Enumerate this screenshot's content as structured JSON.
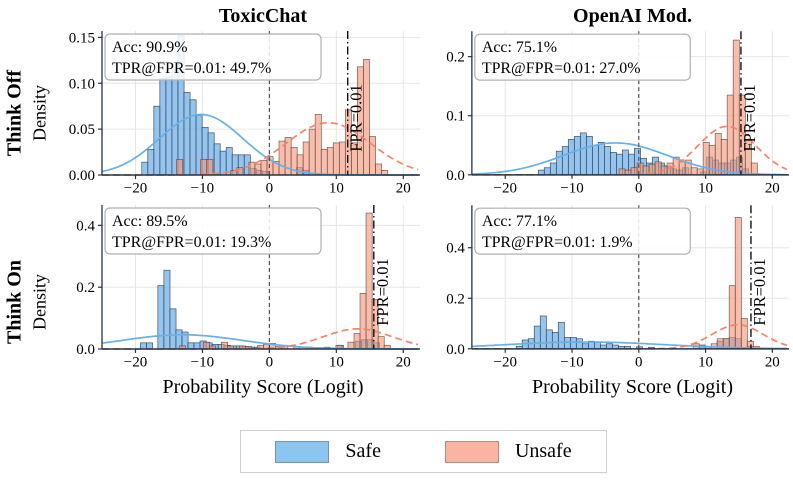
{
  "figure": {
    "columns": [
      "ToxicChat",
      "OpenAI Mod."
    ],
    "rows": [
      "Think Off",
      "Think On"
    ],
    "ylabel": "Density",
    "xlabel": "Probability Score (Logit)",
    "fpr_line_label": "FPR=0.01",
    "legend": [
      {
        "label": "Safe",
        "color": "#8cc5f0"
      },
      {
        "label": "Unsafe",
        "color": "#fbb4a2"
      }
    ],
    "colors": {
      "safe_fill": "rgba(108,175,233,0.72)",
      "safe_edge": "rgba(42,58,74,0.85)",
      "safe_line": "#67b0ea",
      "unsafe_fill": "rgba(246,150,120,0.62)",
      "unsafe_edge": "rgba(85,62,55,0.8)",
      "unsafe_line": "#f48468",
      "zero_line": "#444444",
      "fpr_line": "#111111",
      "grid": "#e6e6e6",
      "spine": "#243447",
      "annotation_border": "#b0b0b0"
    }
  },
  "chart_data": [
    {
      "type": "histogram+kde",
      "title": "ToxicChat",
      "row": "Think Off",
      "acc_text": "Acc: 90.9%",
      "tpr_text": "TPR@FPR=0.01: 49.7%",
      "xlim": [
        -25,
        22.5
      ],
      "ylim": [
        0,
        0.157
      ],
      "xticks": {
        "values": [
          -20,
          -10,
          0,
          10,
          20
        ],
        "labels": [
          "−20",
          "−10",
          "0",
          "10",
          "20"
        ]
      },
      "yticks": {
        "values": [
          0,
          0.05,
          0.1,
          0.15
        ],
        "labels": [
          "0.00",
          "0.05",
          "0.10",
          "0.15"
        ]
      },
      "zero_x": 0,
      "fpr_x": 11.7,
      "bin_width": 0.92,
      "safe_bins": [
        [
          -18.6,
          0.014
        ],
        [
          -17.7,
          0.028
        ],
        [
          -16.8,
          0.075
        ],
        [
          -15.9,
          0.105
        ],
        [
          -15.0,
          0.107
        ],
        [
          -14.1,
          0.115
        ],
        [
          -13.2,
          0.152
        ],
        [
          -12.3,
          0.09
        ],
        [
          -11.4,
          0.082
        ],
        [
          -10.5,
          0.065
        ],
        [
          -9.6,
          0.052
        ],
        [
          -8.7,
          0.046
        ],
        [
          -7.8,
          0.034
        ],
        [
          -6.9,
          0.026
        ],
        [
          -6.0,
          0.03
        ],
        [
          -5.1,
          0.022
        ],
        [
          -4.2,
          0.022
        ],
        [
          -3.3,
          0.022
        ],
        [
          -2.4,
          0.007
        ],
        [
          -1.5,
          0.005
        ],
        [
          -0.6,
          0.004
        ],
        [
          4.5,
          0.008
        ],
        [
          5.4,
          0.005
        ]
      ],
      "unsafe_bins": [
        [
          -13.4,
          0.017
        ],
        [
          -9.8,
          0.017
        ],
        [
          -8.9,
          0.017
        ],
        [
          -5.3,
          0.005
        ],
        [
          -4.4,
          0.008
        ],
        [
          -2.6,
          0.014
        ],
        [
          -1.7,
          0.012
        ],
        [
          -0.8,
          0.016
        ],
        [
          0.1,
          0.02
        ],
        [
          1.0,
          0.015
        ],
        [
          1.9,
          0.037
        ],
        [
          2.8,
          0.041
        ],
        [
          3.7,
          0.03
        ],
        [
          4.6,
          0.022
        ],
        [
          5.5,
          0.036
        ],
        [
          6.4,
          0.05
        ],
        [
          7.3,
          0.066
        ],
        [
          8.2,
          0.028
        ],
        [
          9.1,
          0.03
        ],
        [
          10.0,
          0.035
        ],
        [
          10.9,
          0.036
        ],
        [
          11.8,
          0.071
        ],
        [
          12.7,
          0.035
        ],
        [
          13.6,
          0.118
        ],
        [
          14.5,
          0.126
        ],
        [
          15.4,
          0.042
        ],
        [
          16.3,
          0.012
        ],
        [
          17.2,
          0.005
        ]
      ],
      "safe_kde": {
        "mean": -10.2,
        "sd": 6.2,
        "peak": 0.066
      },
      "unsafe_kde": {
        "mean": 8.8,
        "sd": 6.3,
        "peak": 0.057
      }
    },
    {
      "type": "histogram+kde",
      "title": "OpenAI Mod.",
      "row": "Think Off",
      "acc_text": "Acc: 75.1%",
      "tpr_text": "TPR@FPR=0.01: 27.0%",
      "xlim": [
        -25,
        22.5
      ],
      "ylim": [
        0,
        0.243
      ],
      "xticks": {
        "values": [
          -20,
          -10,
          0,
          10,
          20
        ],
        "labels": [
          "−20",
          "−10",
          "0",
          "10",
          "20"
        ]
      },
      "yticks": {
        "values": [
          0,
          0.1,
          0.2
        ],
        "labels": [
          "0.0",
          "0.1",
          "0.2"
        ]
      },
      "zero_x": 0,
      "fpr_x": 15.3,
      "bin_width": 0.92,
      "safe_bins": [
        [
          -14.6,
          0.008
        ],
        [
          -13.7,
          0.012
        ],
        [
          -12.8,
          0.02
        ],
        [
          -11.9,
          0.04
        ],
        [
          -11.0,
          0.048
        ],
        [
          -10.1,
          0.06
        ],
        [
          -9.2,
          0.065
        ],
        [
          -8.3,
          0.071
        ],
        [
          -7.4,
          0.065
        ],
        [
          -6.5,
          0.05
        ],
        [
          -5.6,
          0.055
        ],
        [
          -4.7,
          0.048
        ],
        [
          -3.8,
          0.038
        ],
        [
          -2.9,
          0.035
        ],
        [
          -2.0,
          0.042
        ],
        [
          -1.1,
          0.035
        ],
        [
          -0.2,
          0.045
        ],
        [
          0.7,
          0.028
        ],
        [
          1.6,
          0.02
        ],
        [
          2.5,
          0.03
        ],
        [
          3.4,
          0.02
        ],
        [
          4.3,
          0.015
        ],
        [
          5.2,
          0.01
        ],
        [
          6.1,
          0.008
        ],
        [
          7.0,
          0.012
        ],
        [
          9.7,
          0.005
        ],
        [
          10.6,
          0.03
        ],
        [
          11.5,
          0.025
        ],
        [
          12.4,
          0.02
        ],
        [
          13.3,
          0.02
        ],
        [
          14.2,
          0.025
        ],
        [
          15.1,
          0.03
        ],
        [
          16.0,
          0.01
        ]
      ],
      "unsafe_bins": [
        [
          -2.5,
          0.01
        ],
        [
          -1.6,
          0.008
        ],
        [
          -0.7,
          0.012
        ],
        [
          0.2,
          0.02
        ],
        [
          1.1,
          0.015
        ],
        [
          2.0,
          0.018
        ],
        [
          2.9,
          0.022
        ],
        [
          3.8,
          0.015
        ],
        [
          4.7,
          0.02
        ],
        [
          5.6,
          0.03
        ],
        [
          6.5,
          0.022
        ],
        [
          7.4,
          0.025
        ],
        [
          8.3,
          0.012
        ],
        [
          9.2,
          0.01
        ],
        [
          10.1,
          0.055
        ],
        [
          11.0,
          0.05
        ],
        [
          11.9,
          0.07
        ],
        [
          12.8,
          0.06
        ],
        [
          13.7,
          0.135
        ],
        [
          14.6,
          0.228
        ],
        [
          15.5,
          0.135
        ],
        [
          16.4,
          0.06
        ],
        [
          17.3,
          0.02
        ]
      ],
      "safe_kde": {
        "mean": -3.5,
        "sd": 7.8,
        "peak": 0.054
      },
      "unsafe_kde": {
        "mean": 13.2,
        "sd": 4.3,
        "peak": 0.082
      }
    },
    {
      "type": "histogram+kde",
      "title": "ToxicChat",
      "row": "Think On",
      "acc_text": "Acc: 89.5%",
      "tpr_text": "TPR@FPR=0.01: 19.3%",
      "xlim": [
        -25,
        22.5
      ],
      "ylim": [
        0,
        0.466
      ],
      "xticks": {
        "values": [
          -20,
          -10,
          0,
          10,
          20
        ],
        "labels": [
          "−20",
          "−10",
          "0",
          "10",
          "20"
        ]
      },
      "yticks": {
        "values": [
          0,
          0.2,
          0.4
        ],
        "labels": [
          "0.0",
          "0.2",
          "0.4"
        ]
      },
      "zero_x": 0,
      "fpr_x": 15.6,
      "bin_width": 0.92,
      "safe_bins": [
        [
          -18.8,
          0.02
        ],
        [
          -17.9,
          0.02
        ],
        [
          -16.2,
          0.205
        ],
        [
          -15.3,
          0.255
        ],
        [
          -14.4,
          0.13
        ],
        [
          -13.5,
          0.062
        ],
        [
          -12.6,
          0.055
        ],
        [
          -11.7,
          0.02
        ],
        [
          -10.8,
          0.02
        ],
        [
          -9.9,
          0.026
        ],
        [
          -9.0,
          0.02
        ],
        [
          -8.1,
          0.015
        ],
        [
          -7.2,
          0.015
        ],
        [
          -6.3,
          0.012
        ],
        [
          -5.4,
          0.01
        ],
        [
          -4.5,
          0.01
        ],
        [
          -3.6,
          0.008
        ],
        [
          -2.7,
          0.006
        ],
        [
          -1.8,
          0.006
        ],
        [
          10.6,
          0.012
        ],
        [
          13.3,
          0.025
        ],
        [
          14.2,
          0.03
        ],
        [
          15.1,
          0.03
        ],
        [
          16.0,
          0.02
        ]
      ],
      "unsafe_bins": [
        [
          -13.0,
          0.01
        ],
        [
          -9.4,
          0.022
        ],
        [
          -8.5,
          0.01
        ],
        [
          -6.7,
          0.022
        ],
        [
          -5.8,
          0.01
        ],
        [
          -4.0,
          0.01
        ],
        [
          -3.1,
          0.008
        ],
        [
          -1.3,
          0.012
        ],
        [
          -0.4,
          0.015
        ],
        [
          0.5,
          0.018
        ],
        [
          1.4,
          0.008
        ],
        [
          2.3,
          0.012
        ],
        [
          4.1,
          0.008
        ],
        [
          5.9,
          0.006
        ],
        [
          8.6,
          0.006
        ],
        [
          10.4,
          0.012
        ],
        [
          12.2,
          0.022
        ],
        [
          13.1,
          0.05
        ],
        [
          14.0,
          0.18
        ],
        [
          14.9,
          0.44
        ],
        [
          15.8,
          0.16
        ],
        [
          16.7,
          0.04
        ],
        [
          17.6,
          0.012
        ]
      ],
      "safe_kde": {
        "mean": -13,
        "sd": 9,
        "peak": 0.046
      },
      "unsafe_kde": {
        "mean": 13.2,
        "sd": 5.2,
        "peak": 0.065
      }
    },
    {
      "type": "histogram+kde",
      "title": "OpenAI Mod.",
      "row": "Think On",
      "acc_text": "Acc: 77.1%",
      "tpr_text": "TPR@FPR=0.01: 1.9%",
      "xlim": [
        -25,
        22.5
      ],
      "ylim": [
        0,
        0.568
      ],
      "xticks": {
        "values": [
          -20,
          -10,
          0,
          10,
          20
        ],
        "labels": [
          "−20",
          "−10",
          "0",
          "10",
          "20"
        ]
      },
      "yticks": {
        "values": [
          0,
          0.2,
          0.4
        ],
        "labels": [
          "0.0",
          "0.2",
          "0.4"
        ]
      },
      "zero_x": 0,
      "fpr_x": 16.8,
      "bin_width": 0.92,
      "safe_bins": [
        [
          -17.9,
          0.01
        ],
        [
          -17.0,
          0.035
        ],
        [
          -16.1,
          0.04
        ],
        [
          -15.2,
          0.09
        ],
        [
          -14.3,
          0.13
        ],
        [
          -13.4,
          0.075
        ],
        [
          -12.5,
          0.065
        ],
        [
          -11.6,
          0.105
        ],
        [
          -10.7,
          0.045
        ],
        [
          -9.8,
          0.045
        ],
        [
          -8.9,
          0.04
        ],
        [
          -8.0,
          0.02
        ],
        [
          -7.1,
          0.03
        ],
        [
          -6.2,
          0.025
        ],
        [
          -5.3,
          0.015
        ],
        [
          -4.4,
          0.02
        ],
        [
          -3.5,
          0.015
        ],
        [
          -2.6,
          0.01
        ],
        [
          -1.7,
          0.01
        ],
        [
          0.1,
          0.008
        ],
        [
          1.9,
          0.006
        ],
        [
          9.5,
          0.015
        ],
        [
          10.4,
          0.01
        ],
        [
          12.2,
          0.03
        ],
        [
          13.1,
          0.04
        ],
        [
          14.0,
          0.045
        ],
        [
          14.9,
          0.04
        ],
        [
          16.7,
          0.01
        ]
      ],
      "unsafe_bins": [
        [
          8.6,
          0.02
        ],
        [
          9.5,
          0.01
        ],
        [
          11.3,
          0.02
        ],
        [
          12.2,
          0.04
        ],
        [
          13.1,
          0.04
        ],
        [
          14.0,
          0.25
        ],
        [
          14.9,
          0.52
        ],
        [
          15.8,
          0.12
        ],
        [
          16.7,
          0.03
        ],
        [
          17.6,
          0.01
        ]
      ],
      "safe_kde": {
        "mean": -8,
        "sd": 12,
        "peak": 0.027
      },
      "unsafe_kde": {
        "mean": 14.8,
        "sd": 3.8,
        "peak": 0.095
      }
    }
  ]
}
